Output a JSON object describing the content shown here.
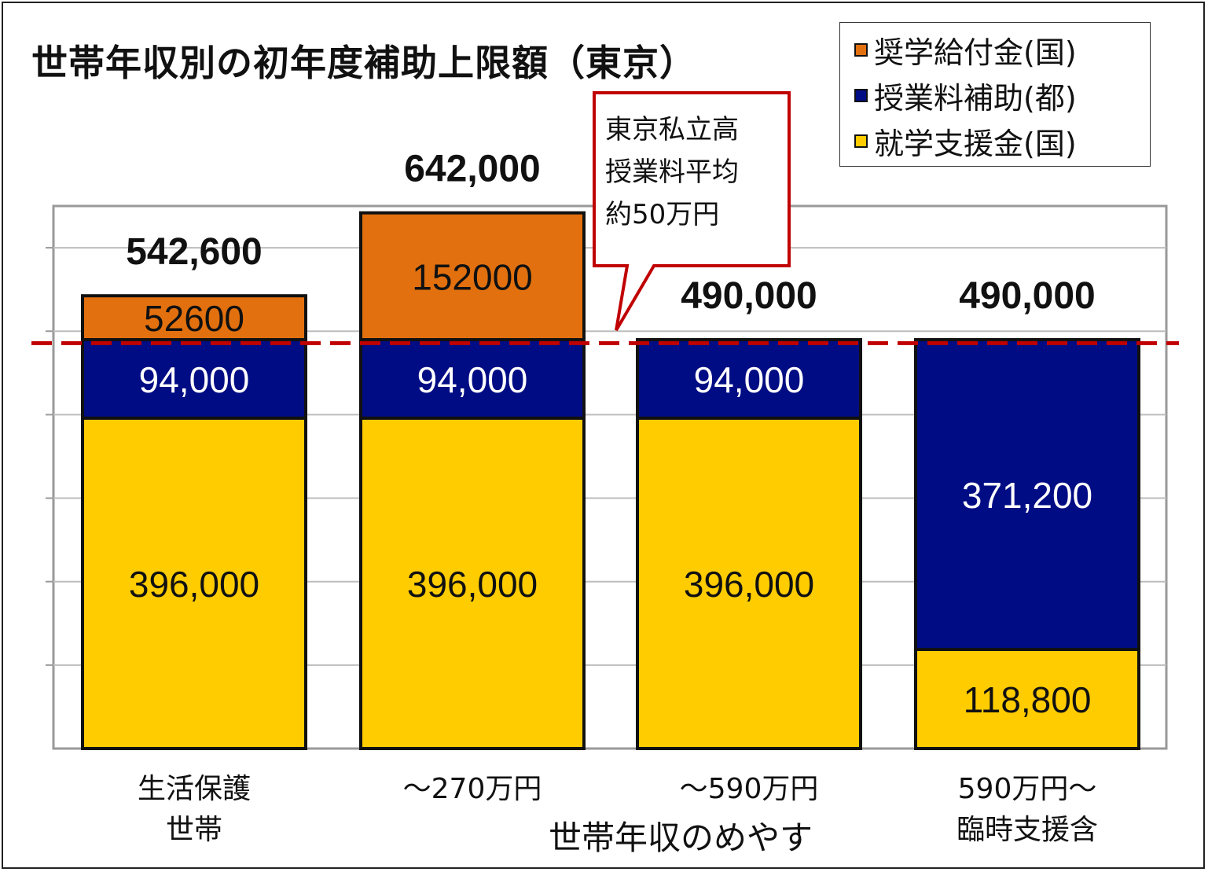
{
  "title": "世帯年収別の初年度補助上限額（東京）",
  "legend": {
    "items": [
      {
        "label": "奨学給付金(国)",
        "color": "#E2700E"
      },
      {
        "label": "授業料補助(都)",
        "color": "#000C83"
      },
      {
        "label": "就学支援金(国)",
        "color": "#FFCC00"
      }
    ]
  },
  "callout": {
    "lines": [
      "東京私立高",
      "授業料平均",
      "約50万円"
    ],
    "border_color": "#C00000"
  },
  "x_axis_title": "世帯年収のめやす",
  "categories": [
    {
      "lines": [
        "生活保護",
        "世帯"
      ]
    },
    {
      "lines": [
        "～270万円"
      ]
    },
    {
      "lines": [
        "～590万円"
      ]
    },
    {
      "lines": [
        "590万円～",
        "臨時支援含"
      ]
    }
  ],
  "chart_data": {
    "type": "bar",
    "stacked": true,
    "title": "世帯年収別の初年度補助上限額（東京）",
    "xlabel": "世帯年収のめやす",
    "ylabel": "",
    "categories": [
      "生活保護世帯",
      "～270万円",
      "～590万円",
      "590万円～臨時支援含"
    ],
    "series": [
      {
        "name": "就学支援金(国)",
        "color": "#FFCC00",
        "values": [
          396000,
          396000,
          396000,
          118800
        ],
        "labels": [
          "396,000",
          "396,000",
          "396,000",
          "118,800"
        ],
        "label_color": "#111111"
      },
      {
        "name": "授業料補助(都)",
        "color": "#000C83",
        "values": [
          94000,
          94000,
          94000,
          371200
        ],
        "labels": [
          "94,000",
          "94,000",
          "94,000",
          "371,200"
        ],
        "label_color": "#FFFFFF"
      },
      {
        "name": "奨学給付金(国)",
        "color": "#E2700E",
        "values": [
          52600,
          152000,
          0,
          0
        ],
        "labels": [
          "52600",
          "152000",
          "",
          ""
        ],
        "label_color": "#111111"
      }
    ],
    "totals": [
      "542,600",
      "642,000",
      "490,000",
      "490,000"
    ],
    "reference_line": {
      "value": 500000,
      "color": "#C00000",
      "style": "dashed"
    },
    "ylim": [
      0,
      650000
    ],
    "grid": true
  }
}
